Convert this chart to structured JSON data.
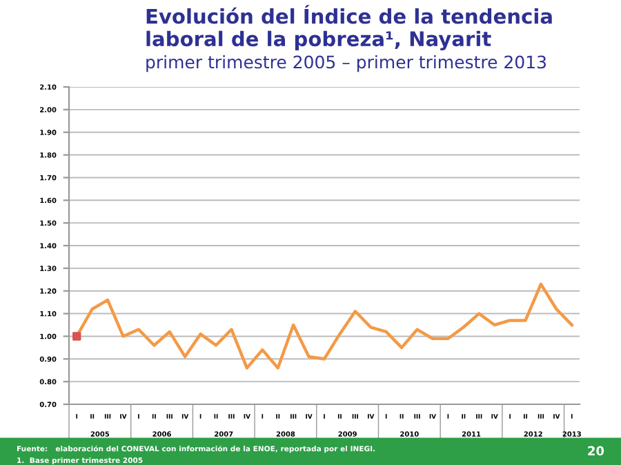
{
  "chart_data": {
    "type": "line",
    "title": "Evolución del Índice de la tendencia laboral de la pobreza¹, Nayarit",
    "subtitle": "primer trimestre 2005 – primer trimestre 2013",
    "categories": [
      "I",
      "II",
      "III",
      "IV",
      "I",
      "II",
      "III",
      "IV",
      "I",
      "II",
      "III",
      "IV",
      "I",
      "II",
      "III",
      "IV",
      "I",
      "II",
      "III",
      "IV",
      "I",
      "II",
      "III",
      "IV",
      "I",
      "II",
      "III",
      "IV",
      "I",
      "II",
      "III",
      "IV",
      "I"
    ],
    "series": [
      {
        "color": "#f39a46",
        "values": [
          1.0,
          1.12,
          1.16,
          1.0,
          1.03,
          0.96,
          1.02,
          0.91,
          1.01,
          0.96,
          1.03,
          0.86,
          0.94,
          0.86,
          1.05,
          0.91,
          0.9,
          1.01,
          1.11,
          1.04,
          1.02,
          0.95,
          1.03,
          0.99,
          0.99,
          1.04,
          1.1,
          1.05,
          1.07,
          1.07,
          1.23,
          1.12,
          1.05
        ]
      },
      {
        "type": "scatter",
        "marker": "square",
        "color": "#d9534f",
        "values": [
          1.0,
          null,
          null,
          null,
          null,
          null,
          null,
          null,
          null,
          null,
          null,
          null,
          null,
          null,
          null,
          null,
          null,
          null,
          null,
          null,
          null,
          null,
          null,
          null,
          null,
          null,
          null,
          null,
          null,
          null,
          null,
          null,
          null
        ]
      }
    ],
    "ylim": [
      0.7,
      2.1
    ],
    "yticks": [
      {
        "value": 0.7,
        "label": "0.70"
      },
      {
        "value": 0.8,
        "label": "0.80"
      },
      {
        "value": 0.9,
        "label": "0.90"
      },
      {
        "value": 1.0,
        "label": "1.00"
      },
      {
        "value": 1.1,
        "label": "1.10"
      },
      {
        "value": 1.2,
        "label": "1.20"
      },
      {
        "value": 1.3,
        "label": "1.30"
      },
      {
        "value": 1.4,
        "label": "1.40"
      },
      {
        "value": 1.5,
        "label": "1.50"
      },
      {
        "value": 1.6,
        "label": "1.60"
      },
      {
        "value": 1.7,
        "label": "1.70"
      },
      {
        "value": 1.8,
        "label": "1.80"
      },
      {
        "value": 1.9,
        "label": "1.90"
      },
      {
        "value": 2.0,
        "label": "2.00"
      },
      {
        "value": 2.1,
        "label": "2.10"
      }
    ],
    "grid": "y",
    "legend": false,
    "line_style": "solid",
    "annotations": [
      "2005",
      "2006",
      "2007",
      "2008",
      "2009",
      "2010",
      "2011",
      "2012",
      "2013",
      "Fuente:   elaboración del CONEVAL con información de la ENOE, reportada por el INEGI.",
      "1.  Base primer trimestre 2005",
      "20"
    ]
  }
}
